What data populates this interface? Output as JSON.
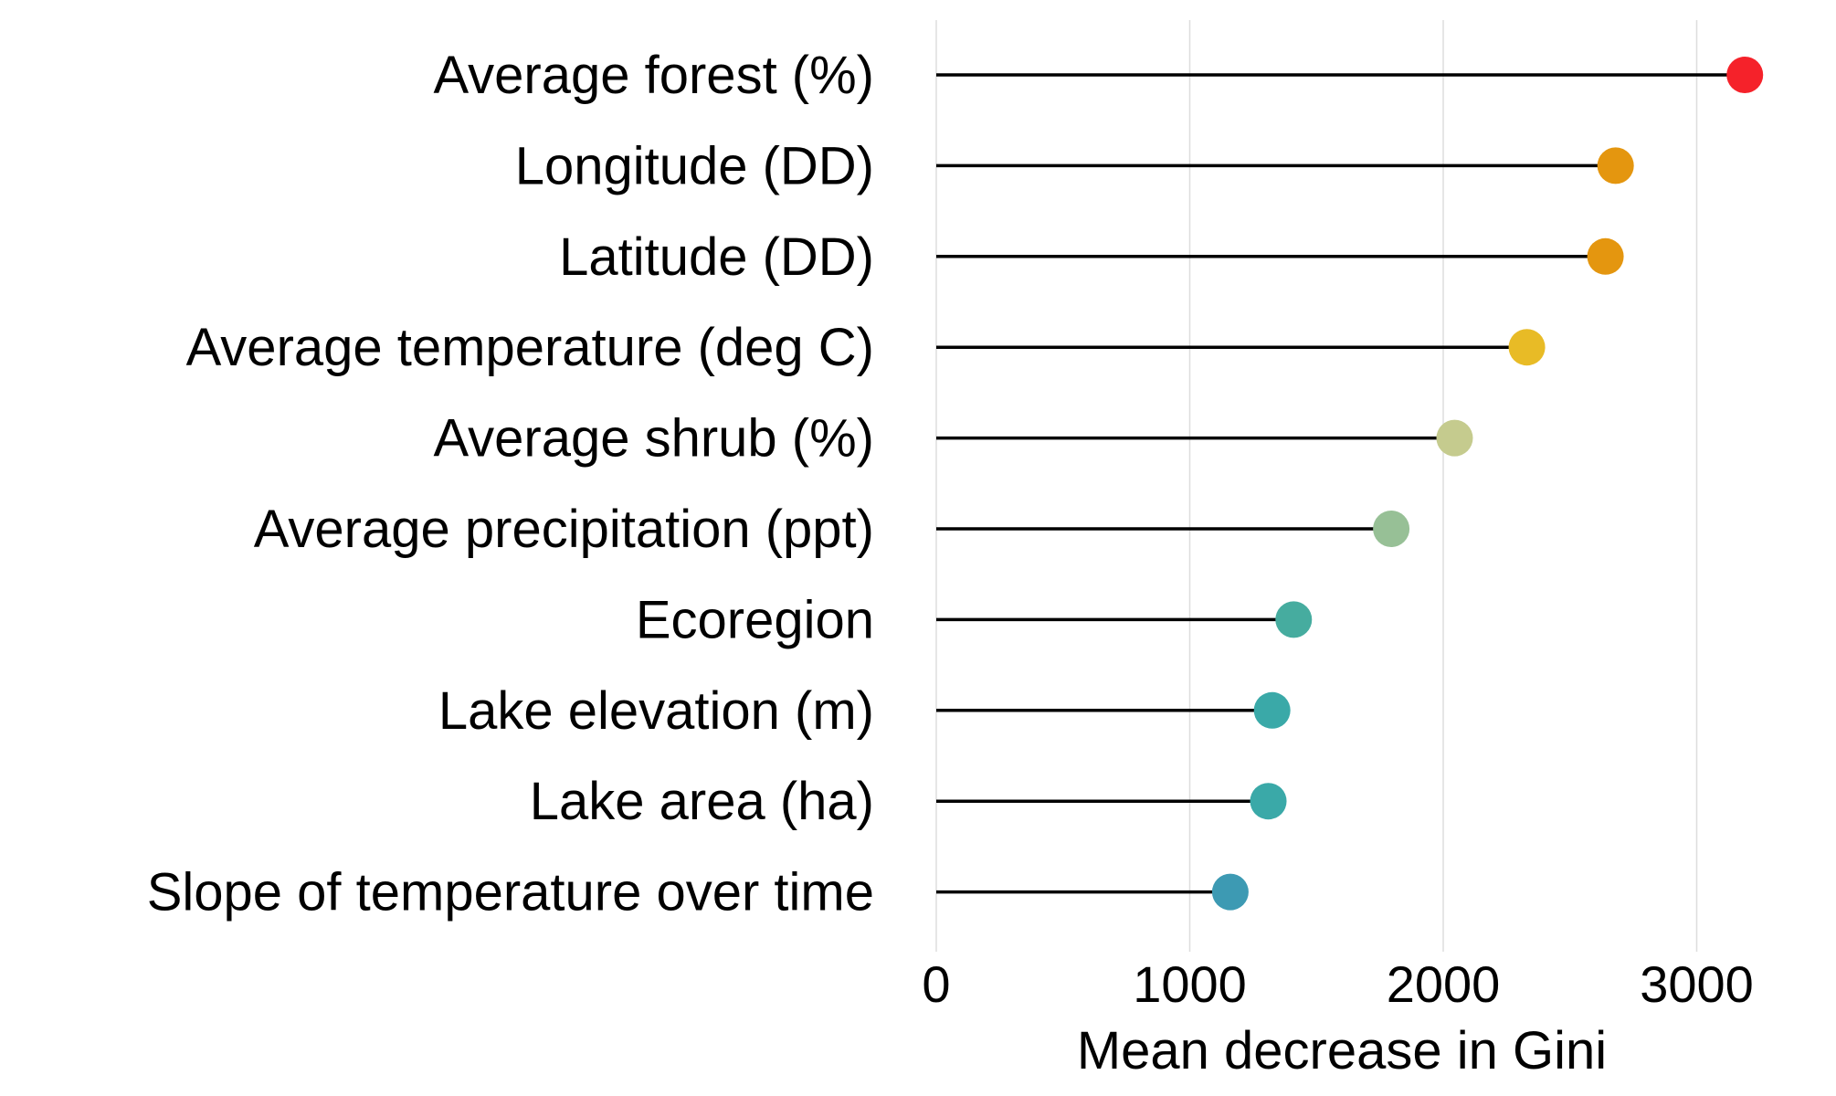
{
  "chart_data": {
    "type": "lollipop",
    "title": "",
    "xlabel": "Mean decrease in Gini",
    "ylabel": "",
    "xlim": [
      0,
      3200
    ],
    "x_ticks": [
      0,
      1000,
      2000,
      3000
    ],
    "x_tick_labels": [
      "0",
      "1000",
      "2000",
      "3000"
    ],
    "grid": "vertical major lines",
    "legend": "none",
    "categories": [
      "Average forest (%)",
      "Longitude (DD)",
      "Latitude (DD)",
      "Average temperature (deg C)",
      "Average shrub (%)",
      "Average precipitation (ppt)",
      "Ecoregion",
      "Lake elevation (m)",
      "Lake area (ha)",
      "Slope of temperature over time"
    ],
    "values": [
      3190,
      2680,
      2640,
      2330,
      2045,
      1795,
      1410,
      1325,
      1310,
      1160
    ],
    "point_colors": [
      "#f5222a",
      "#e4960f",
      "#e4960f",
      "#e8bb26",
      "#c5cb8e",
      "#97c096",
      "#46ac9f",
      "#3aa9a8",
      "#3aa9a8",
      "#3d9ab3"
    ]
  }
}
